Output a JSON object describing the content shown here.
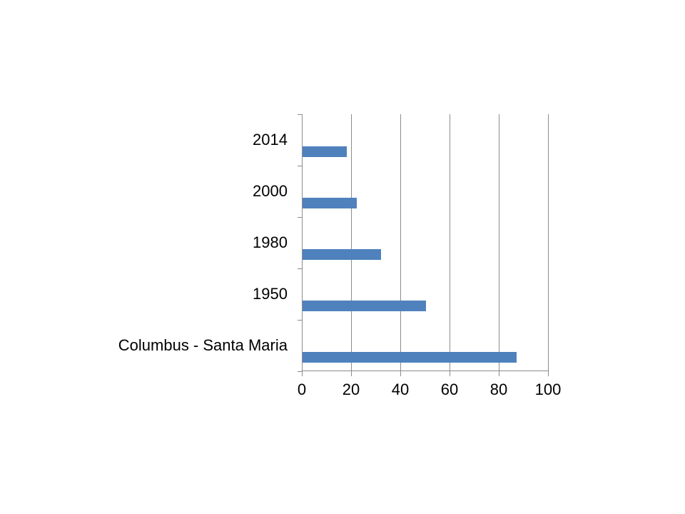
{
  "chart_data": {
    "type": "bar",
    "orientation": "horizontal",
    "categories": [
      "2014",
      "2000",
      "1980",
      "1950",
      "Columbus - Santa Maria"
    ],
    "values": [
      18,
      22,
      32,
      50,
      87
    ],
    "xlim": [
      0,
      100
    ],
    "xticks": [
      0,
      20,
      40,
      60,
      80,
      100
    ],
    "grid": "vertical",
    "legend": "none",
    "colors": {
      "bar": "#4F81BD",
      "gridline": "#8C8C8C",
      "axis": "#8C8C8C",
      "text": "#000000",
      "background": "#FFFFFF"
    }
  }
}
